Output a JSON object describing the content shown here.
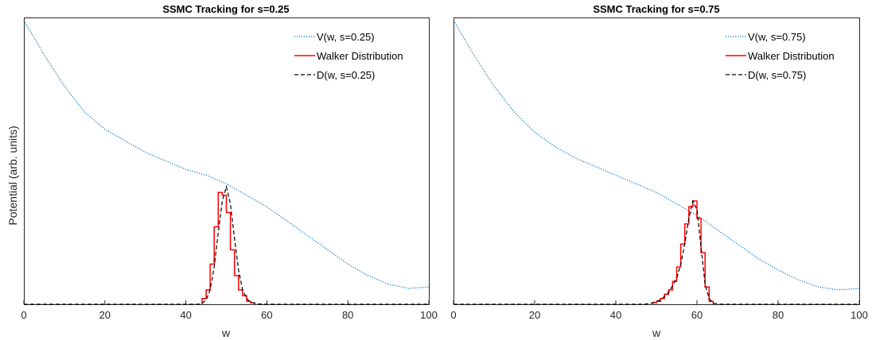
{
  "chart_data": [
    {
      "type": "line",
      "title": "SSMC Tracking for s=0.25",
      "xlabel": "w",
      "ylabel": "Potential (arb. units)",
      "xlim": [
        0,
        100
      ],
      "ylim": [
        0,
        1
      ],
      "xticks": [
        "0",
        "20",
        "40",
        "60",
        "80",
        "100"
      ],
      "legend_position": "top-right",
      "colors": {
        "potential": "#0072BD",
        "walker": "#FF0000",
        "density": "#000000"
      },
      "series": [
        {
          "name": "V(w, s=0.25)",
          "style": "dotted",
          "x": [
            0,
            5,
            10,
            15,
            20,
            25,
            30,
            35,
            40,
            45,
            50,
            55,
            60,
            65,
            70,
            75,
            80,
            85,
            90,
            95,
            100
          ],
          "y": [
            0.99,
            0.87,
            0.76,
            0.67,
            0.61,
            0.57,
            0.53,
            0.5,
            0.47,
            0.45,
            0.42,
            0.38,
            0.34,
            0.29,
            0.24,
            0.19,
            0.14,
            0.1,
            0.07,
            0.055,
            0.06
          ]
        },
        {
          "name": "Walker Distribution",
          "style": "steps",
          "edges": [
            44,
            45,
            46,
            47,
            48,
            49,
            50,
            51,
            52,
            53,
            54,
            55,
            56,
            57
          ],
          "values": [
            0.02,
            0.05,
            0.14,
            0.27,
            0.39,
            0.38,
            0.32,
            0.19,
            0.1,
            0.05,
            0.03,
            0.01,
            0.005
          ]
        },
        {
          "name": "D(w, s=0.25)",
          "style": "dashed",
          "x": [
            0,
            43,
            44,
            45,
            46,
            47,
            48,
            49,
            50,
            51,
            52,
            53,
            54,
            55,
            56,
            58,
            60,
            100
          ],
          "y": [
            0,
            0,
            0.003,
            0.015,
            0.05,
            0.13,
            0.25,
            0.36,
            0.41,
            0.35,
            0.23,
            0.12,
            0.05,
            0.02,
            0.007,
            0.001,
            0,
            0
          ]
        }
      ]
    },
    {
      "type": "line",
      "title": "SSMC Tracking for s=0.75",
      "xlabel": "w",
      "ylabel": "",
      "xlim": [
        0,
        100
      ],
      "ylim": [
        0,
        1
      ],
      "xticks": [
        "0",
        "20",
        "40",
        "60",
        "80",
        "100"
      ],
      "legend_position": "top-right",
      "colors": {
        "potential": "#0072BD",
        "walker": "#FF0000",
        "density": "#000000"
      },
      "series": [
        {
          "name": "V(w, s=0.75)",
          "style": "dotted",
          "x": [
            0,
            5,
            10,
            15,
            20,
            25,
            30,
            35,
            40,
            45,
            50,
            55,
            60,
            65,
            70,
            75,
            80,
            85,
            90,
            95,
            100
          ],
          "y": [
            0.99,
            0.87,
            0.76,
            0.67,
            0.6,
            0.55,
            0.51,
            0.48,
            0.45,
            0.42,
            0.39,
            0.35,
            0.31,
            0.26,
            0.21,
            0.16,
            0.12,
            0.085,
            0.06,
            0.05,
            0.055
          ]
        },
        {
          "name": "Walker Distribution",
          "style": "steps",
          "edges": [
            49,
            50,
            51,
            52,
            53,
            54,
            55,
            56,
            57,
            58,
            59,
            60,
            61,
            62,
            63,
            64
          ],
          "values": [
            0.005,
            0.01,
            0.02,
            0.035,
            0.05,
            0.08,
            0.13,
            0.21,
            0.28,
            0.34,
            0.36,
            0.3,
            0.18,
            0.06,
            0.01
          ]
        },
        {
          "name": "D(w, s=0.75)",
          "style": "dashed",
          "x": [
            0,
            47,
            49,
            51,
            53,
            55,
            56,
            57,
            58,
            59,
            60,
            61,
            62,
            63,
            64,
            66,
            100
          ],
          "y": [
            0,
            0,
            0.005,
            0.015,
            0.04,
            0.09,
            0.14,
            0.21,
            0.3,
            0.36,
            0.33,
            0.2,
            0.07,
            0.02,
            0.004,
            0,
            0
          ]
        }
      ]
    }
  ]
}
